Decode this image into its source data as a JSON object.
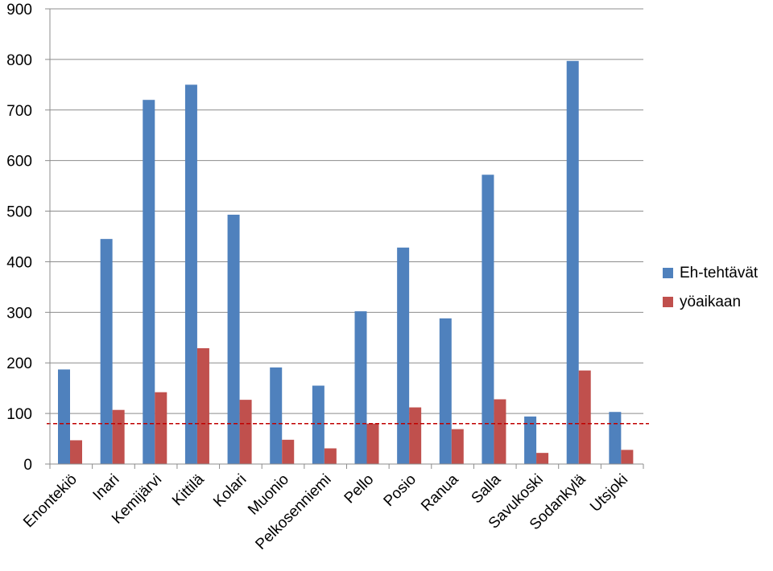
{
  "chart_data": {
    "type": "bar",
    "categories": [
      "Enontekiö",
      "Inari",
      "Kemijärvi",
      "Kittilä",
      "Kolari",
      "Muonio",
      "Pelkosenniemi",
      "Pello",
      "Posio",
      "Ranua",
      "Salla",
      "Savukoski",
      "Sodankylä",
      "Utsjoki"
    ],
    "series": [
      {
        "name": "Eh-tehtävät",
        "color": "#4f81bd",
        "values": [
          187,
          445,
          720,
          750,
          493,
          191,
          155,
          302,
          428,
          288,
          572,
          94,
          797,
          103
        ]
      },
      {
        "name": "yöaikaan",
        "color": "#c0504d",
        "values": [
          47,
          107,
          142,
          229,
          127,
          48,
          31,
          80,
          112,
          69,
          128,
          22,
          185,
          28
        ]
      }
    ],
    "ylim": [
      0,
      900
    ],
    "yticks": [
      0,
      100,
      200,
      300,
      400,
      500,
      600,
      700,
      800,
      900
    ],
    "reference_line": {
      "value": 80,
      "color": "#c00000",
      "style": "dashed"
    },
    "grid": true,
    "legend_position": "right",
    "xlabel": "",
    "ylabel": "",
    "title": ""
  }
}
